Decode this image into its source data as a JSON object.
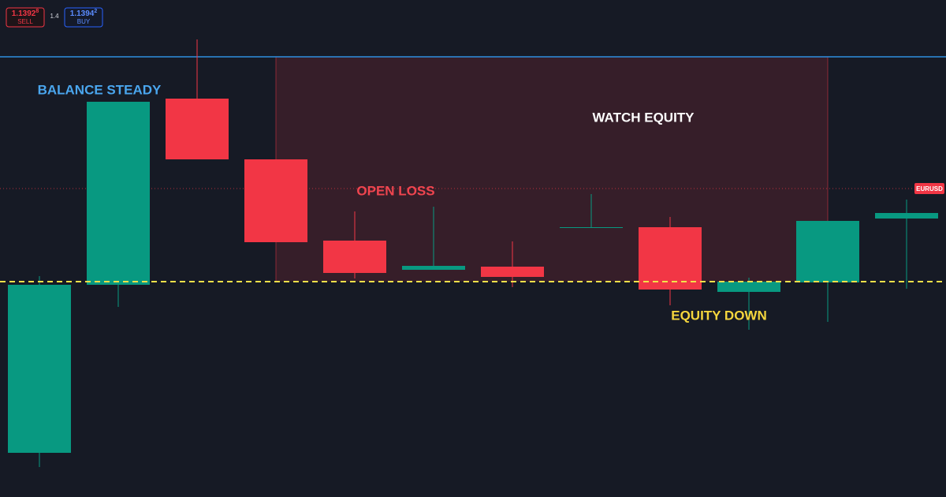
{
  "chart_data": {
    "type": "candlestick",
    "symbol_label": "EURUSD",
    "trade_panel": {
      "sell_price": "1.1392",
      "sell_pip": "8",
      "sell_label": "SELL",
      "spread": "1.4",
      "buy_price": "1.1394",
      "buy_pip": "2",
      "buy_label": "BUY"
    },
    "categories": [
      null,
      null,
      null,
      null,
      null,
      null,
      null,
      null,
      null,
      null,
      null,
      null
    ],
    "open": [
      1.13112,
      1.13538,
      1.1401,
      1.13856,
      1.1365,
      1.13576,
      1.13584,
      1.13684,
      1.13684,
      1.1352,
      1.13544,
      1.13706
    ],
    "high": [
      1.1356,
      1.14002,
      1.1416,
      1.13856,
      1.13724,
      1.13736,
      1.13648,
      1.13768,
      1.1371,
      1.13556,
      1.137,
      1.13754
    ],
    "low": [
      1.13076,
      1.13482,
      1.13856,
      1.13646,
      1.13554,
      1.13576,
      1.13532,
      1.13684,
      1.13486,
      1.13424,
      1.13444,
      1.13528
    ],
    "close": [
      1.13538,
      1.14002,
      1.13856,
      1.13646,
      1.13568,
      1.13586,
      1.13558,
      1.13684,
      1.13526,
      1.13546,
      1.137,
      1.1372
    ],
    "up_color": "#089981",
    "down_color": "#f23645",
    "ylim": [
      1.13,
      1.1426
    ],
    "levels": {
      "balance": 1.14116,
      "balance_color": "#2f8fe0",
      "equity": 1.13546,
      "equity_color": "#f5e04a",
      "price": 1.13782,
      "price_color": "#f23645"
    },
    "annotations": [
      {
        "text": "BALANCE STEADY",
        "color": "#4aa6ee"
      },
      {
        "text": "WATCH EQUITY",
        "color": "#ffffff"
      },
      {
        "text": "OPEN LOSS",
        "color": "#f0454f"
      },
      {
        "text": "EQUITY DOWN",
        "color": "#f5d63d"
      }
    ]
  }
}
